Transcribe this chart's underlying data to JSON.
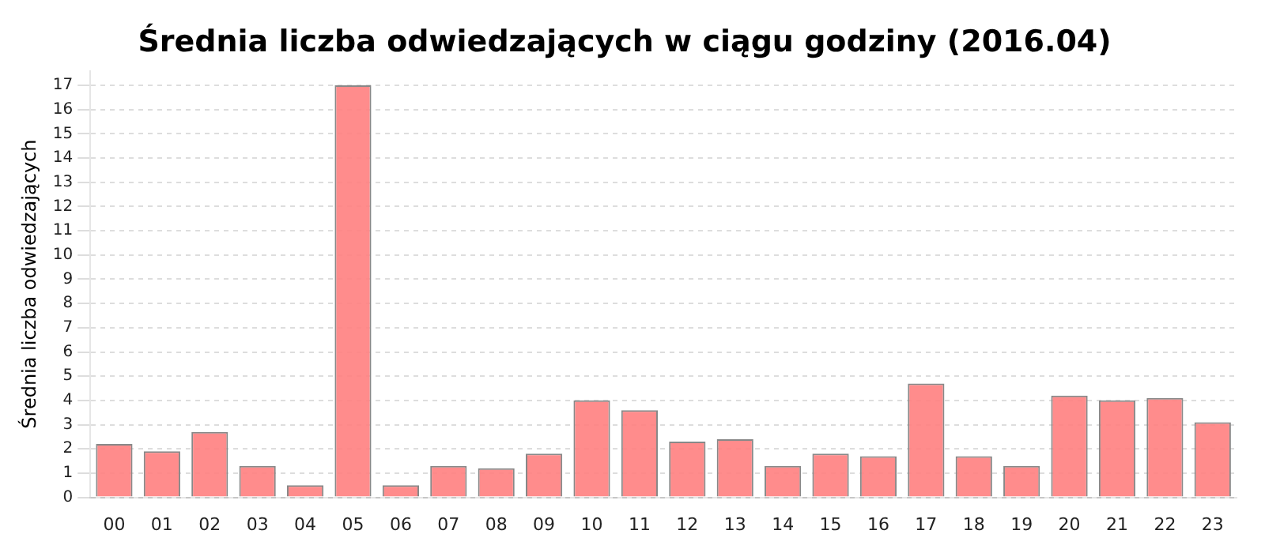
{
  "chart_data": {
    "type": "bar",
    "title": "Średnia liczba odwiedzających w ciągu godziny (2016.04)",
    "ylabel": "Średnia liczba odwiedzających",
    "categories": [
      "00",
      "01",
      "02",
      "03",
      "04",
      "05",
      "06",
      "07",
      "08",
      "09",
      "10",
      "11",
      "12",
      "13",
      "14",
      "15",
      "16",
      "17",
      "18",
      "19",
      "20",
      "21",
      "22",
      "23"
    ],
    "values": [
      2.2,
      1.9,
      2.7,
      1.3,
      0.5,
      17.0,
      0.5,
      1.3,
      1.2,
      1.8,
      4.0,
      3.6,
      2.3,
      2.4,
      1.3,
      1.8,
      1.7,
      4.7,
      1.7,
      1.3,
      4.2,
      4.0,
      4.1,
      3.1
    ],
    "color": "#ff7f7f",
    "ylim": [
      0,
      17.6
    ],
    "yticks": [
      0,
      1,
      2,
      3,
      4,
      5,
      6,
      7,
      8,
      9,
      10,
      11,
      12,
      13,
      14,
      15,
      16,
      17
    ],
    "grid": "y",
    "legend": false
  }
}
